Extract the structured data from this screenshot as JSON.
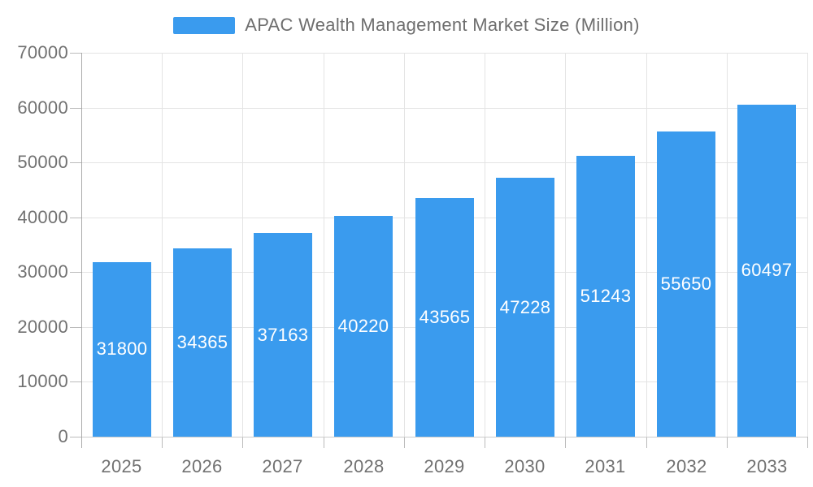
{
  "legend": {
    "label": "APAC Wealth Management Market Size (Million)"
  },
  "chart_data": {
    "type": "bar",
    "title": "APAC Wealth Management Market Size (Million)",
    "categories": [
      "2025",
      "2026",
      "2027",
      "2028",
      "2029",
      "2030",
      "2031",
      "2032",
      "2033"
    ],
    "values": [
      31800,
      34365,
      37163,
      40220,
      43565,
      47228,
      51243,
      55650,
      60497
    ],
    "xlabel": "",
    "ylabel": "",
    "ylim": [
      0,
      70000
    ],
    "yticks": [
      0,
      10000,
      20000,
      30000,
      40000,
      50000,
      60000,
      70000
    ],
    "grid": true,
    "legend_position": "top",
    "bar_label_position": "inside-center"
  },
  "colors": {
    "bar": "#3a9bee",
    "bar_label": "#ffffff",
    "axis_text": "#717171",
    "title_text": "#6e6e6e",
    "gridline": "#e4e4e4",
    "axis_line_y": "#aaaaaa",
    "axis_line_x": "#cccccc",
    "tick": "#bbbbbb",
    "background": "#ffffff"
  }
}
